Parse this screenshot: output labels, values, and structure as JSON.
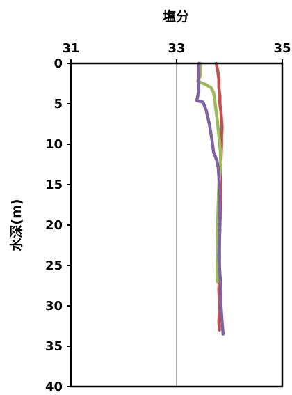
{
  "chart_data": {
    "type": "line",
    "title": "塩分",
    "xlabel": "",
    "ylabel": "水深(m)",
    "x_axis_position": "top",
    "y_inverted": true,
    "xlim": [
      31,
      35
    ],
    "ylim": [
      0,
      40
    ],
    "x_ticks": [
      "31",
      "33",
      "35"
    ],
    "y_ticks": [
      "0",
      "5",
      "10",
      "15",
      "20",
      "25",
      "30",
      "35",
      "40"
    ],
    "grid": "vertical-major",
    "legend": "none",
    "series": [
      {
        "color": "#c0504d",
        "points": [
          [
            33.75,
            0
          ],
          [
            33.78,
            1
          ],
          [
            33.8,
            2
          ],
          [
            33.8,
            3
          ],
          [
            33.82,
            4
          ],
          [
            33.82,
            5
          ],
          [
            33.84,
            6
          ],
          [
            33.85,
            7
          ],
          [
            33.86,
            8
          ],
          [
            33.85,
            9
          ],
          [
            33.85,
            10
          ],
          [
            33.84,
            12
          ],
          [
            33.83,
            14
          ],
          [
            33.83,
            16
          ],
          [
            33.83,
            18
          ],
          [
            33.82,
            20
          ],
          [
            33.81,
            22
          ],
          [
            33.81,
            24
          ],
          [
            33.81,
            26
          ],
          [
            33.8,
            28
          ],
          [
            33.81,
            30
          ],
          [
            33.8,
            32
          ],
          [
            33.81,
            33
          ]
        ]
      },
      {
        "color": "#9bbb59",
        "points": [
          [
            33.45,
            0
          ],
          [
            33.45,
            1.5
          ],
          [
            33.4,
            2.2
          ],
          [
            33.55,
            2.6
          ],
          [
            33.65,
            3
          ],
          [
            33.7,
            3.6
          ],
          [
            33.72,
            4.5
          ],
          [
            33.74,
            5.5
          ],
          [
            33.77,
            7
          ],
          [
            33.8,
            9
          ],
          [
            33.83,
            11
          ],
          [
            33.83,
            13
          ],
          [
            33.8,
            15
          ],
          [
            33.79,
            17
          ],
          [
            33.78,
            19
          ],
          [
            33.77,
            21
          ],
          [
            33.78,
            23
          ],
          [
            33.77,
            25
          ],
          [
            33.77,
            27
          ]
        ]
      },
      {
        "color": "#8064a2",
        "points": [
          [
            33.42,
            0
          ],
          [
            33.42,
            2
          ],
          [
            33.42,
            3.5
          ],
          [
            33.38,
            4.6
          ],
          [
            33.5,
            4.8
          ],
          [
            33.56,
            5.8
          ],
          [
            33.62,
            7.5
          ],
          [
            33.67,
            9.5
          ],
          [
            33.7,
            11
          ],
          [
            33.76,
            12
          ],
          [
            33.79,
            13
          ],
          [
            33.8,
            14
          ],
          [
            33.81,
            16
          ],
          [
            33.82,
            18
          ],
          [
            33.82,
            20
          ],
          [
            33.81,
            22
          ],
          [
            33.8,
            24
          ],
          [
            33.82,
            26
          ],
          [
            33.84,
            28
          ],
          [
            33.84,
            30
          ],
          [
            33.86,
            32
          ],
          [
            33.88,
            33.5
          ]
        ]
      }
    ]
  }
}
